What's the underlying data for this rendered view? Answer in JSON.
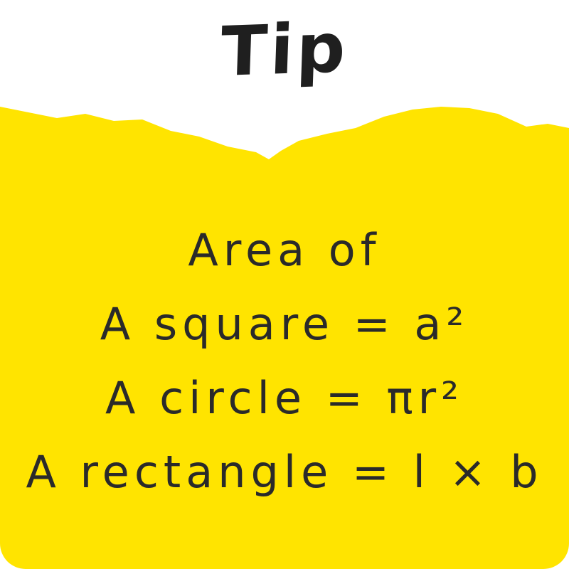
{
  "title": "Tip",
  "colors": {
    "accent": "#FFE400",
    "text": "#2a2a2a"
  },
  "lines": [
    "Area of",
    "A square = a²",
    "A circle = πr²",
    "A rectangle = l × b"
  ]
}
